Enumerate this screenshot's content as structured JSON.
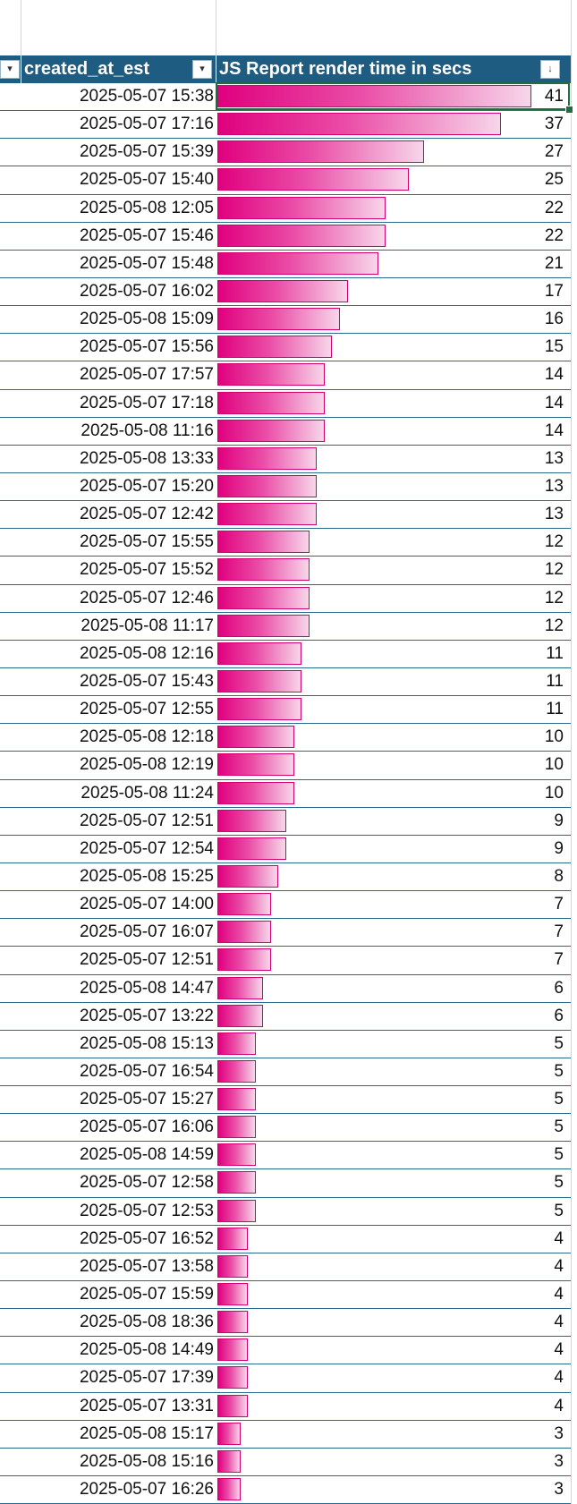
{
  "header": {
    "col1_label": "created_at_est",
    "col2_label": "JS Report render time in secs",
    "filter_glyph": "▾",
    "sort_glyph": "↓"
  },
  "max_value": 41,
  "rows": [
    {
      "created_at_est": "2025-05-07 15:38",
      "render_time": 41
    },
    {
      "created_at_est": "2025-05-07 17:16",
      "render_time": 37
    },
    {
      "created_at_est": "2025-05-07 15:39",
      "render_time": 27
    },
    {
      "created_at_est": "2025-05-07 15:40",
      "render_time": 25
    },
    {
      "created_at_est": "2025-05-08 12:05",
      "render_time": 22
    },
    {
      "created_at_est": "2025-05-07 15:46",
      "render_time": 22
    },
    {
      "created_at_est": "2025-05-07 15:48",
      "render_time": 21
    },
    {
      "created_at_est": "2025-05-07 16:02",
      "render_time": 17
    },
    {
      "created_at_est": "2025-05-08 15:09",
      "render_time": 16
    },
    {
      "created_at_est": "2025-05-07 15:56",
      "render_time": 15
    },
    {
      "created_at_est": "2025-05-07 17:57",
      "render_time": 14
    },
    {
      "created_at_est": "2025-05-07 17:18",
      "render_time": 14
    },
    {
      "created_at_est": "2025-05-08 11:16",
      "render_time": 14
    },
    {
      "created_at_est": "2025-05-08 13:33",
      "render_time": 13
    },
    {
      "created_at_est": "2025-05-07 15:20",
      "render_time": 13
    },
    {
      "created_at_est": "2025-05-07 12:42",
      "render_time": 13
    },
    {
      "created_at_est": "2025-05-07 15:55",
      "render_time": 12
    },
    {
      "created_at_est": "2025-05-07 15:52",
      "render_time": 12
    },
    {
      "created_at_est": "2025-05-07 12:46",
      "render_time": 12
    },
    {
      "created_at_est": "2025-05-08 11:17",
      "render_time": 12
    },
    {
      "created_at_est": "2025-05-08 12:16",
      "render_time": 11
    },
    {
      "created_at_est": "2025-05-07 15:43",
      "render_time": 11
    },
    {
      "created_at_est": "2025-05-07 12:55",
      "render_time": 11
    },
    {
      "created_at_est": "2025-05-08 12:18",
      "render_time": 10
    },
    {
      "created_at_est": "2025-05-08 12:19",
      "render_time": 10
    },
    {
      "created_at_est": "2025-05-08 11:24",
      "render_time": 10
    },
    {
      "created_at_est": "2025-05-07 12:51",
      "render_time": 9
    },
    {
      "created_at_est": "2025-05-07 12:54",
      "render_time": 9
    },
    {
      "created_at_est": "2025-05-08 15:25",
      "render_time": 8
    },
    {
      "created_at_est": "2025-05-07 14:00",
      "render_time": 7
    },
    {
      "created_at_est": "2025-05-07 16:07",
      "render_time": 7
    },
    {
      "created_at_est": "2025-05-07 12:51",
      "render_time": 7
    },
    {
      "created_at_est": "2025-05-08 14:47",
      "render_time": 6
    },
    {
      "created_at_est": "2025-05-07 13:22",
      "render_time": 6
    },
    {
      "created_at_est": "2025-05-08 15:13",
      "render_time": 5
    },
    {
      "created_at_est": "2025-05-07 16:54",
      "render_time": 5
    },
    {
      "created_at_est": "2025-05-07 15:27",
      "render_time": 5
    },
    {
      "created_at_est": "2025-05-07 16:06",
      "render_time": 5
    },
    {
      "created_at_est": "2025-05-08 14:59",
      "render_time": 5
    },
    {
      "created_at_est": "2025-05-07 12:58",
      "render_time": 5
    },
    {
      "created_at_est": "2025-05-07 12:53",
      "render_time": 5
    },
    {
      "created_at_est": "2025-05-07 16:52",
      "render_time": 4
    },
    {
      "created_at_est": "2025-05-07 13:58",
      "render_time": 4
    },
    {
      "created_at_est": "2025-05-07 15:59",
      "render_time": 4
    },
    {
      "created_at_est": "2025-05-08 18:36",
      "render_time": 4
    },
    {
      "created_at_est": "2025-05-08 14:49",
      "render_time": 4
    },
    {
      "created_at_est": "2025-05-07 17:39",
      "render_time": 4
    },
    {
      "created_at_est": "2025-05-07 13:31",
      "render_time": 4
    },
    {
      "created_at_est": "2025-05-08 15:17",
      "render_time": 3
    },
    {
      "created_at_est": "2025-05-08 15:16",
      "render_time": 3
    },
    {
      "created_at_est": "2025-05-07 16:26",
      "render_time": 3
    }
  ],
  "colors": {
    "header_bg": "#1f5c82",
    "bar_start": "#e0007e",
    "bar_end": "#f7d6ea",
    "row_border": "#2a6a8f",
    "selection": "#1e6e42"
  }
}
